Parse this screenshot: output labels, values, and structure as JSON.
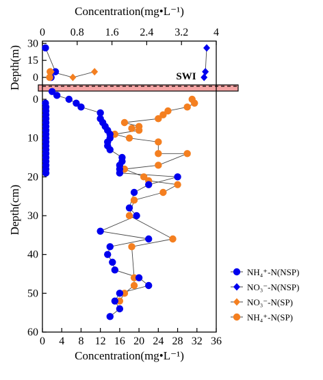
{
  "chart_data": {
    "type": "scatter",
    "top_axis": {
      "label": "Concentration(mg•L⁻¹)",
      "range": [
        0,
        4
      ],
      "ticks": [
        "0",
        "0.8",
        "1.6",
        "2.4",
        "3.2",
        "4"
      ],
      "tick_values": [
        0,
        0.8,
        1.6,
        2.4,
        3.2,
        4
      ]
    },
    "bottom_axis": {
      "label": "Concentration(mg•L⁻¹)",
      "range": [
        0,
        36
      ],
      "ticks": [
        "0",
        "4",
        "8",
        "12",
        "16",
        "20",
        "24",
        "28",
        "32",
        "36"
      ],
      "tick_values": [
        0,
        4,
        8,
        12,
        16,
        20,
        24,
        28,
        32,
        36
      ]
    },
    "upper_panel": {
      "ylabel": "Depth(m)",
      "ylim": [
        -3,
        32
      ],
      "inverted": false,
      "ticks": [
        "30",
        "15",
        "0"
      ],
      "tick_values": [
        30,
        15,
        0
      ]
    },
    "lower_panel": {
      "ylabel": "Depth(cm)",
      "ylim": [
        -3,
        60
      ],
      "inverted": true,
      "ticks": [
        "0",
        "10",
        "20",
        "30",
        "40",
        "50",
        "60"
      ],
      "tick_values": [
        0,
        10,
        20,
        30,
        40,
        50,
        60
      ]
    },
    "annotation": "SWI",
    "swi_band_color": "#f4a3a3",
    "series": [
      {
        "name": "NH₄⁺-N(NSP)",
        "marker": "circle",
        "color": "#0000ee",
        "axis": "top",
        "upper": [
          [
            0.07,
            26
          ],
          [
            0.3,
            5
          ],
          [
            0.2,
            0
          ]
        ],
        "lower": [
          [
            0.07,
            1
          ],
          [
            0.08,
            2
          ],
          [
            0.08,
            3
          ],
          [
            0.08,
            4
          ],
          [
            0.08,
            5
          ],
          [
            0.08,
            6
          ],
          [
            0.08,
            7
          ],
          [
            0.08,
            8
          ],
          [
            0.08,
            9
          ],
          [
            0.08,
            10
          ],
          [
            0.08,
            11
          ],
          [
            0.08,
            12
          ],
          [
            0.08,
            13
          ],
          [
            0.08,
            14
          ],
          [
            0.08,
            15
          ],
          [
            0.08,
            16
          ],
          [
            0.08,
            17
          ],
          [
            0.08,
            18
          ],
          [
            0.08,
            19
          ]
        ]
      },
      {
        "name": "NO₃⁻-N(NSP)",
        "marker": "diamond",
        "color": "#0000ee",
        "axis": "top",
        "upper": [
          [
            3.78,
            26
          ],
          [
            3.75,
            5
          ],
          [
            3.72,
            0
          ]
        ],
        "lower": []
      },
      {
        "name": "NO₃⁻-N(SP)",
        "marker": "diamond",
        "color": "#f47f20",
        "axis": "top",
        "upper": [
          [
            0.2,
            5
          ],
          [
            0.7,
            0
          ],
          [
            1.2,
            5
          ]
        ],
        "lower": []
      },
      {
        "name": "NH₄⁺-N(SP)",
        "marker": "circle",
        "color": "#f47f20",
        "axis": "bottom",
        "upper": [
          [
            1.6,
            5
          ],
          [
            1.5,
            0
          ]
        ],
        "lower": [
          [
            31,
            0
          ],
          [
            31.5,
            1
          ],
          [
            30,
            2
          ],
          [
            26,
            3
          ],
          [
            25,
            4
          ],
          [
            24,
            5
          ],
          [
            17,
            6
          ],
          [
            20,
            7
          ],
          [
            18.5,
            7.5
          ],
          [
            20,
            8
          ],
          [
            15,
            9
          ],
          [
            18,
            10
          ],
          [
            24,
            11
          ],
          [
            24,
            14
          ],
          [
            30,
            14
          ],
          [
            24,
            17
          ],
          [
            17,
            18
          ],
          [
            21,
            20
          ],
          [
            22,
            21
          ],
          [
            28,
            22
          ],
          [
            25,
            24
          ],
          [
            19,
            26
          ],
          [
            18,
            30
          ],
          [
            27,
            36
          ],
          [
            18.5,
            38
          ],
          [
            19,
            46
          ],
          [
            19,
            48
          ],
          [
            17,
            50
          ],
          [
            16,
            52
          ]
        ]
      },
      {
        "name": "NH₄⁺-N(NSP) lower",
        "marker": "circle",
        "color": "#0000ee",
        "axis": "bottom",
        "legend": false,
        "upper": [],
        "lower": [
          [
            2,
            -2
          ],
          [
            3,
            -1
          ],
          [
            5.5,
            0
          ],
          [
            7,
            1
          ],
          [
            8,
            2
          ],
          [
            12,
            3.5
          ],
          [
            12,
            5
          ],
          [
            12.5,
            6
          ],
          [
            13,
            7
          ],
          [
            13.5,
            8
          ],
          [
            14,
            9
          ],
          [
            14,
            10
          ],
          [
            13.5,
            11
          ],
          [
            13.5,
            12
          ],
          [
            14,
            13
          ],
          [
            16.5,
            15
          ],
          [
            16.5,
            16
          ],
          [
            16,
            17
          ],
          [
            16,
            18
          ],
          [
            16,
            19
          ],
          [
            28,
            20
          ],
          [
            22,
            22
          ],
          [
            19,
            24
          ],
          [
            18,
            28
          ],
          [
            19.5,
            30
          ],
          [
            12,
            34
          ],
          [
            22,
            36
          ],
          [
            14,
            38
          ],
          [
            13.5,
            40
          ],
          [
            14.5,
            42
          ],
          [
            15,
            44
          ],
          [
            20,
            46
          ],
          [
            22,
            48
          ],
          [
            16,
            50
          ],
          [
            15,
            52
          ],
          [
            16,
            54
          ],
          [
            14,
            56
          ]
        ]
      }
    ]
  }
}
